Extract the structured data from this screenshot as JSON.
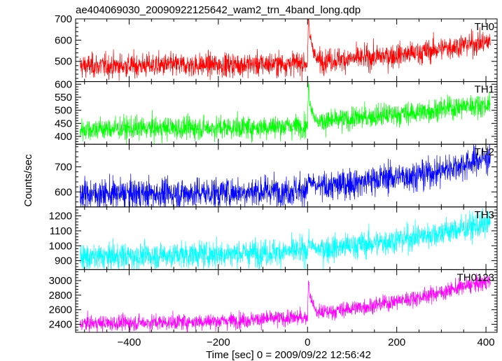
{
  "chart_data": {
    "type": "line",
    "title": "ae404069030_20090922125642_wam2_trn_4band_long.qdp",
    "xlabel": "Time [sec] 0 = 2009/09/22 12:56:42",
    "ylabel": "Counts/sec",
    "xlim": [
      -520,
      425
    ],
    "x_ticks": [
      -400,
      -200,
      0,
      200,
      400
    ],
    "x_tick_labels": [
      "−400",
      "−200",
      "0",
      "200",
      "400"
    ],
    "grid": false,
    "panels": [
      {
        "name": "TH0",
        "color": "#ff0000",
        "ylim": [
          405,
          700
        ],
        "y_ticks": [
          500,
          600,
          700
        ],
        "noise": 28,
        "series": [
          {
            "name": "TH0",
            "x": [
              -510,
              -400,
              -300,
              -200,
              -100,
              0,
              2,
              5,
              20,
              60,
              100,
              150,
              200,
              250,
              300,
              350,
              410
            ],
            "y": [
              478,
              480,
              482,
              483,
              487,
              492,
              700,
              620,
              505,
              508,
              512,
              520,
              530,
              540,
              560,
              578,
              592
            ]
          }
        ]
      },
      {
        "name": "TH1",
        "color": "#00ff00",
        "ylim": [
          370,
          610
        ],
        "y_ticks": [
          400,
          450,
          500,
          550,
          600
        ],
        "noise": 22,
        "series": [
          {
            "name": "TH1",
            "x": [
              -510,
              -400,
              -300,
              -200,
              -100,
              0,
              2,
              5,
              20,
              60,
              100,
              150,
              200,
              250,
              300,
              350,
              410
            ],
            "y": [
              428,
              430,
              432,
              433,
              436,
              442,
              600,
              530,
              455,
              460,
              468,
              478,
              485,
              492,
              505,
              515,
              522
            ]
          }
        ]
      },
      {
        "name": "TH2",
        "color": "#0000ff",
        "ylim": [
          540,
          790
        ],
        "y_ticks": [
          600,
          700
        ],
        "noise": 30,
        "series": [
          {
            "name": "TH2",
            "x": [
              -510,
              -400,
              -300,
              -200,
              -100,
              0,
              2,
              5,
              20,
              60,
              100,
              150,
              200,
              250,
              300,
              350,
              410
            ],
            "y": [
              592,
              592,
              594,
              598,
              603,
              608,
              660,
              640,
              618,
              625,
              635,
              650,
              660,
              668,
              685,
              710,
              740
            ]
          }
        ]
      },
      {
        "name": "TH3",
        "color": "#00ffff",
        "ylim": [
          840,
          1260
        ],
        "y_ticks": [
          900,
          1000,
          1100,
          1200
        ],
        "noise": 45,
        "series": [
          {
            "name": "TH3",
            "x": [
              -510,
              -400,
              -300,
              -200,
              -100,
              0,
              2,
              5,
              20,
              60,
              100,
              150,
              200,
              250,
              300,
              350,
              410
            ],
            "y": [
              920,
              930,
              938,
              945,
              955,
              965,
              1040,
              1010,
              975,
              985,
              1000,
              1015,
              1040,
              1060,
              1090,
              1115,
              1150
            ]
          }
        ]
      },
      {
        "name": "TH0123",
        "color": "#ff00ff",
        "ylim": [
          2290,
          3150
        ],
        "y_ticks": [
          2400,
          2600,
          2800,
          3000
        ],
        "noise": 55,
        "series": [
          {
            "name": "TH0123",
            "x": [
              -510,
              -400,
              -300,
              -200,
              -100,
              0,
              2,
              5,
              20,
              60,
              100,
              150,
              200,
              250,
              300,
              350,
              410
            ],
            "y": [
              2410,
              2420,
              2430,
              2445,
              2470,
              2495,
              3020,
              2800,
              2560,
              2580,
              2620,
              2660,
              2720,
              2770,
              2840,
              2920,
              2990
            ]
          }
        ]
      }
    ]
  }
}
